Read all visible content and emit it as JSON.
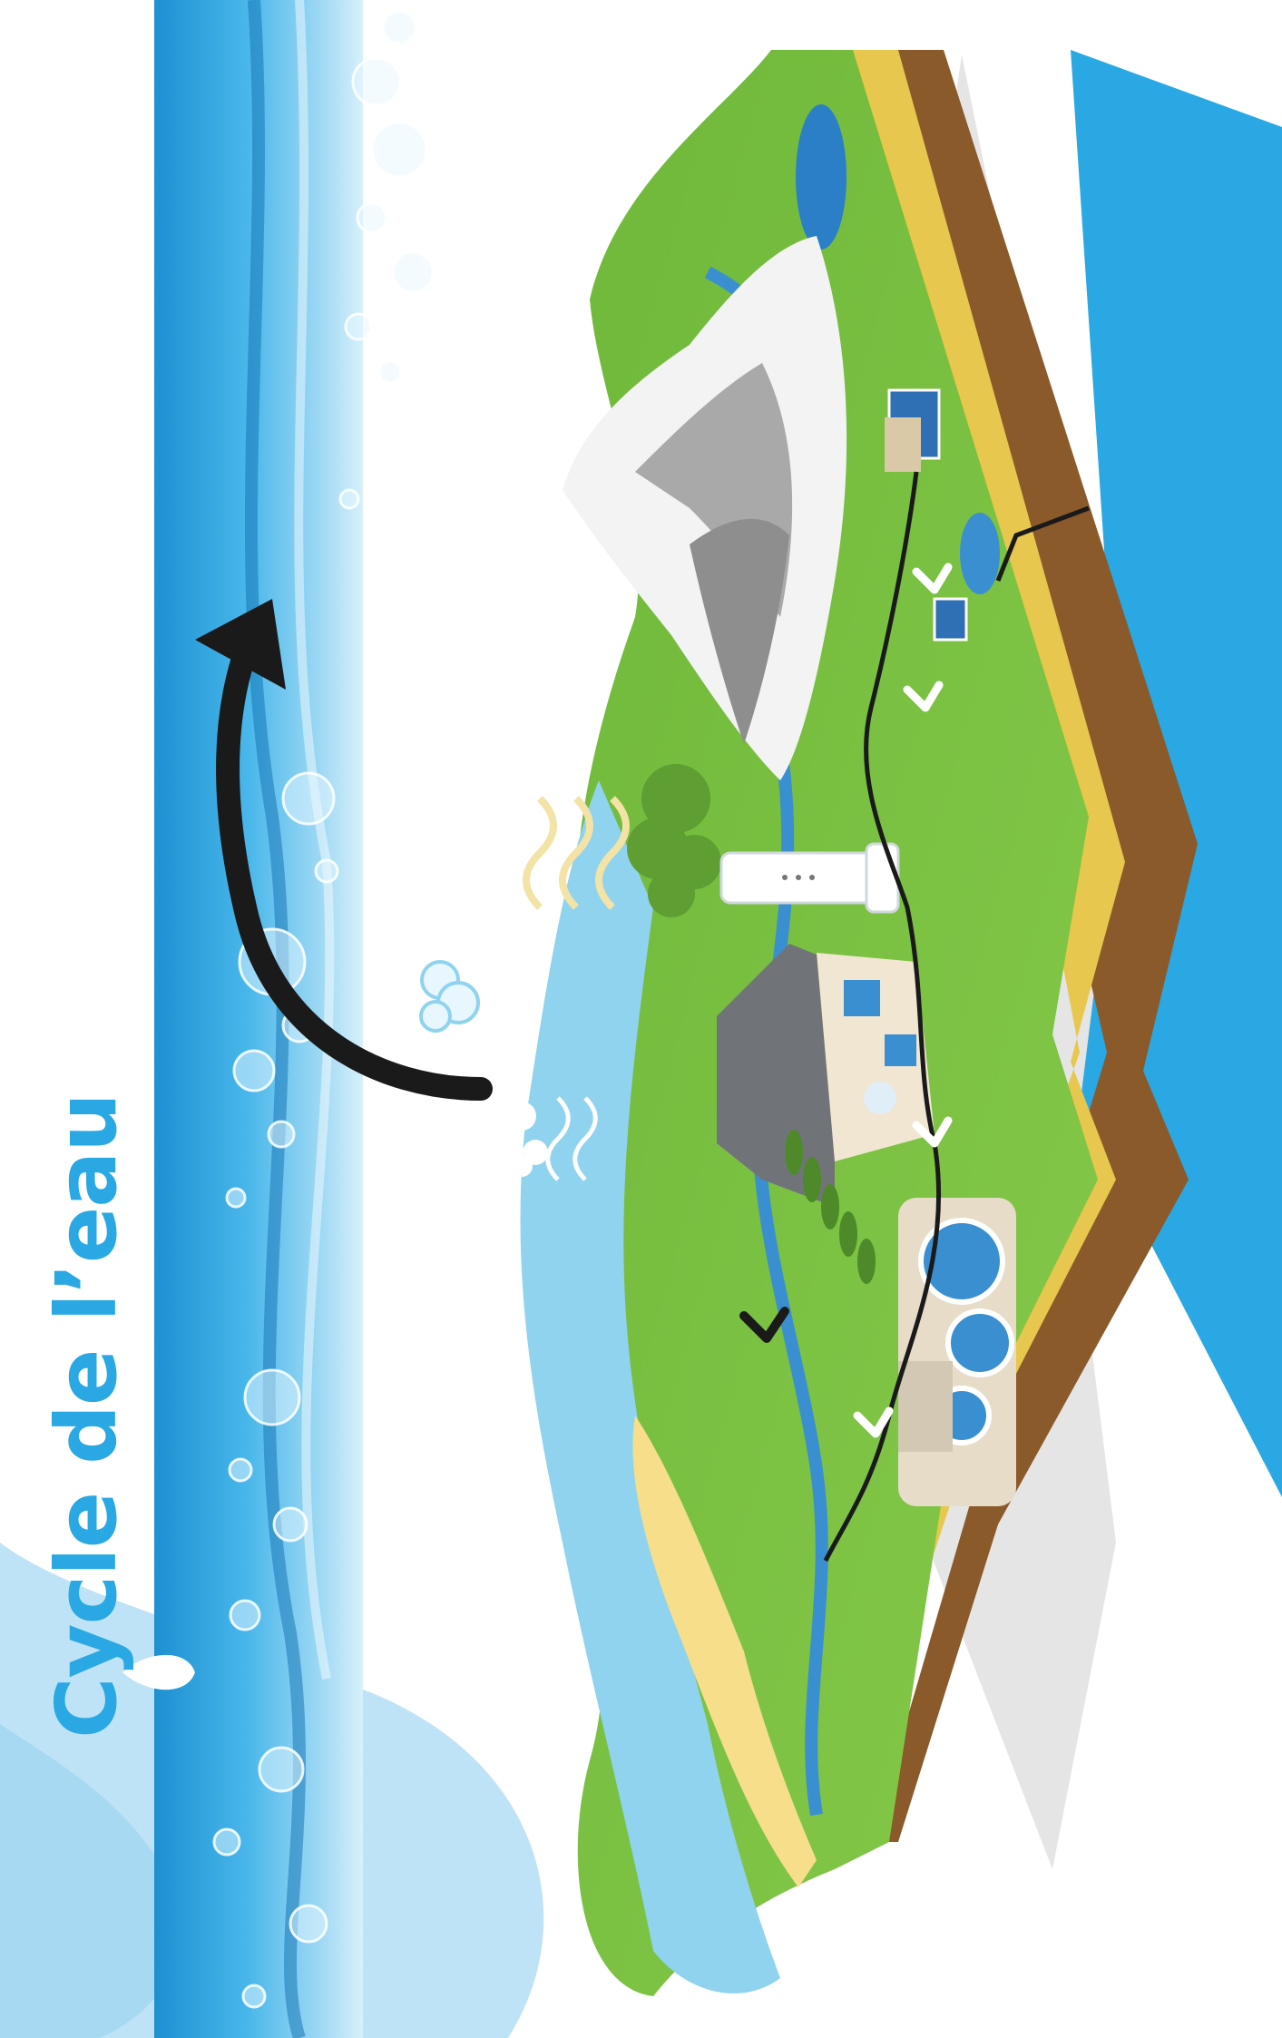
{
  "title": "Cycle de l’eau",
  "colors": {
    "title": "#2aa8e3",
    "water_band": "#2aa8e3",
    "grass": "#7cc242",
    "soil": "#8a5a2b",
    "sand": "#e7c74e",
    "river": "#3a8fd0",
    "sky_light": "#bfe3f6",
    "arrow": "#1a1a1a"
  },
  "icons": [
    "water-drop-icon",
    "cloud-icon",
    "evaporation-waves-icon",
    "circular-arrow-icon",
    "flow-arrow-icon",
    "solar-panel-icon",
    "water-tower-icon",
    "house-icon",
    "treatment-plant-icon",
    "mountain-icon",
    "tree-icon"
  ]
}
